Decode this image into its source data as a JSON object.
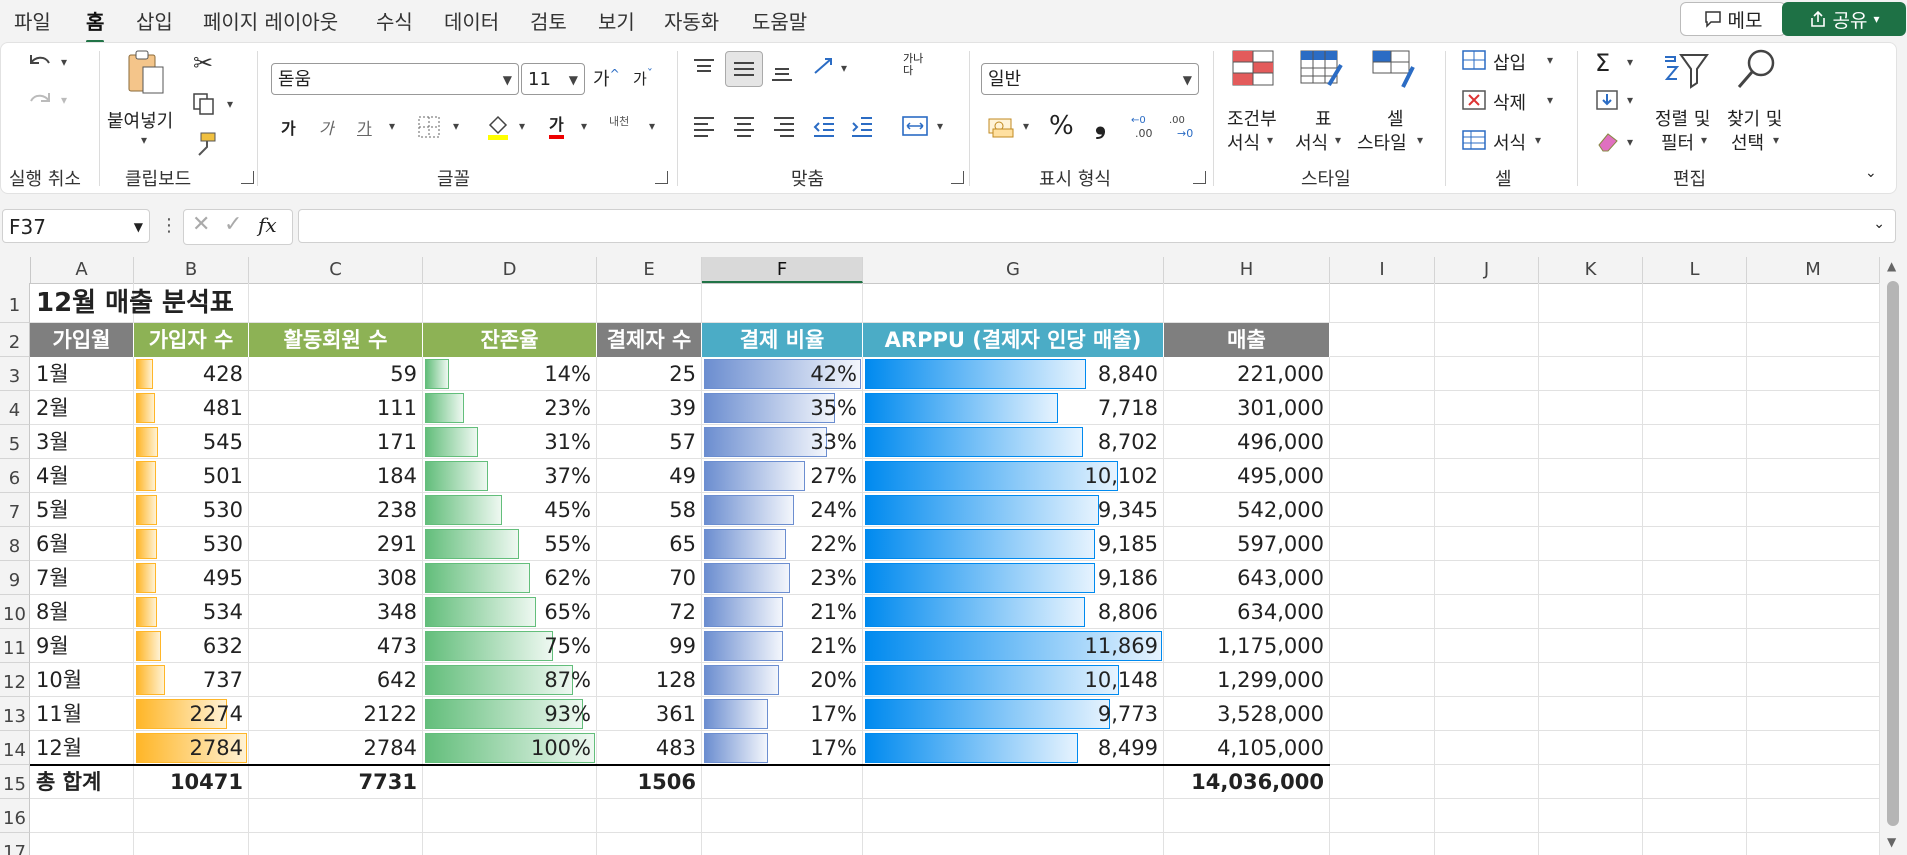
{
  "menu": {
    "tabs": [
      "파일",
      "홈",
      "삽입",
      "페이지 레이아웃",
      "수식",
      "데이터",
      "검토",
      "보기",
      "자동화",
      "도움말"
    ],
    "active_tab": "홈",
    "memo_label": "메모",
    "share_label": "공유"
  },
  "ribbon": {
    "undo_group": "실행 취소",
    "clipboard": {
      "label": "클립보드",
      "paste_label": "붙여넣기"
    },
    "font": {
      "label": "글꼴",
      "font_name": "돋움",
      "font_size": "11",
      "grow_label": "가",
      "shrink_label": "가",
      "bold_label": "가",
      "italic_label": "가",
      "underline_label": "가",
      "fontcolor_label": "가",
      "phonetic_label": "내천"
    },
    "align": {
      "label": "맞춤",
      "wrap_label": "가나다"
    },
    "number": {
      "label": "표시 형식",
      "format": "일반"
    },
    "styles": {
      "label": "스타일",
      "conditional_line1": "조건부",
      "conditional_line2": "서식",
      "table_line1": "표",
      "table_line2": "서식",
      "cell_line1": "셀",
      "cell_line2": "스타일"
    },
    "cells": {
      "label": "셀",
      "insert": "삽입",
      "delete": "삭제",
      "format": "서식"
    },
    "editing": {
      "label": "편집",
      "sort_line1": "정렬 및",
      "sort_line2": "필터",
      "find_line1": "찾기 및",
      "find_line2": "선택"
    }
  },
  "formula_bar": {
    "name_box": "F37",
    "fx_label": "fx",
    "formula": ""
  },
  "columns": [
    "A",
    "B",
    "C",
    "D",
    "E",
    "F",
    "G",
    "H",
    "I",
    "J",
    "K",
    "L",
    "M"
  ],
  "selected_column": "F",
  "rows": [
    "1",
    "2",
    "3",
    "4",
    "5",
    "6",
    "7",
    "8",
    "9",
    "10",
    "11",
    "12",
    "13",
    "14",
    "15",
    "16",
    "17"
  ],
  "sheet": {
    "title": "12월 매출 분석표",
    "headers": [
      "가입월",
      "가입자 수",
      "활동회원 수",
      "잔존율",
      "결제자 수",
      "결제 비율",
      "ARPPU (결제자 인당 매출)",
      "매출"
    ],
    "header_colors": [
      "#7f7f7f",
      "#8db255",
      "#8db255",
      "#8db255",
      "#7f7f7f",
      "#4bacc6",
      "#4bacc6",
      "#7f7f7f"
    ],
    "data": [
      {
        "month": "1월",
        "signups": "428",
        "active": "59",
        "retention": "14%",
        "payers": "25",
        "pay_ratio": "42%",
        "arppu": "8,840",
        "revenue": "221,000"
      },
      {
        "month": "2월",
        "signups": "481",
        "active": "111",
        "retention": "23%",
        "payers": "39",
        "pay_ratio": "35%",
        "arppu": "7,718",
        "revenue": "301,000"
      },
      {
        "month": "3월",
        "signups": "545",
        "active": "171",
        "retention": "31%",
        "payers": "57",
        "pay_ratio": "33%",
        "arppu": "8,702",
        "revenue": "496,000"
      },
      {
        "month": "4월",
        "signups": "501",
        "active": "184",
        "retention": "37%",
        "payers": "49",
        "pay_ratio": "27%",
        "arppu": "10,102",
        "revenue": "495,000"
      },
      {
        "month": "5월",
        "signups": "530",
        "active": "238",
        "retention": "45%",
        "payers": "58",
        "pay_ratio": "24%",
        "arppu": "9,345",
        "revenue": "542,000"
      },
      {
        "month": "6월",
        "signups": "530",
        "active": "291",
        "retention": "55%",
        "payers": "65",
        "pay_ratio": "22%",
        "arppu": "9,185",
        "revenue": "597,000"
      },
      {
        "month": "7월",
        "signups": "495",
        "active": "308",
        "retention": "62%",
        "payers": "70",
        "pay_ratio": "23%",
        "arppu": "9,186",
        "revenue": "643,000"
      },
      {
        "month": "8월",
        "signups": "534",
        "active": "348",
        "retention": "65%",
        "payers": "72",
        "pay_ratio": "21%",
        "arppu": "8,806",
        "revenue": "634,000"
      },
      {
        "month": "9월",
        "signups": "632",
        "active": "473",
        "retention": "75%",
        "payers": "99",
        "pay_ratio": "21%",
        "arppu": "11,869",
        "revenue": "1,175,000"
      },
      {
        "month": "10월",
        "signups": "737",
        "active": "642",
        "retention": "87%",
        "payers": "128",
        "pay_ratio": "20%",
        "arppu": "10,148",
        "revenue": "1,299,000"
      },
      {
        "month": "11월",
        "signups": "2274",
        "active": "2122",
        "retention": "93%",
        "payers": "361",
        "pay_ratio": "17%",
        "arppu": "9,773",
        "revenue": "3,528,000"
      },
      {
        "month": "12월",
        "signups": "2784",
        "active": "2784",
        "retention": "100%",
        "payers": "483",
        "pay_ratio": "17%",
        "arppu": "8,499",
        "revenue": "4,105,000"
      }
    ],
    "total": {
      "label": "총 합계",
      "signups": "10471",
      "active": "7731",
      "payers": "1506",
      "revenue": "14,036,000"
    }
  },
  "data_bar_colors": {
    "signups": "#ffb628",
    "retention": "#63be7b",
    "pay_ratio": "#6c8ed0",
    "arppu": "#008aef"
  }
}
